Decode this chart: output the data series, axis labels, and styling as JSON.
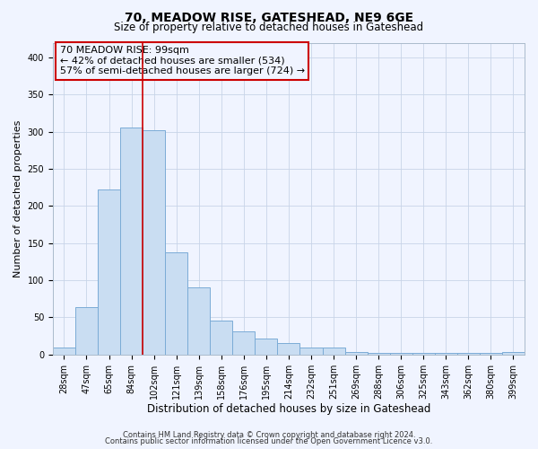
{
  "title": "70, MEADOW RISE, GATESHEAD, NE9 6GE",
  "subtitle": "Size of property relative to detached houses in Gateshead",
  "xlabel": "Distribution of detached houses by size in Gateshead",
  "ylabel": "Number of detached properties",
  "bar_labels": [
    "28sqm",
    "47sqm",
    "65sqm",
    "84sqm",
    "102sqm",
    "121sqm",
    "139sqm",
    "158sqm",
    "176sqm",
    "195sqm",
    "214sqm",
    "232sqm",
    "251sqm",
    "269sqm",
    "288sqm",
    "306sqm",
    "325sqm",
    "343sqm",
    "362sqm",
    "380sqm",
    "399sqm"
  ],
  "bar_values": [
    9,
    64,
    222,
    306,
    302,
    138,
    90,
    46,
    31,
    21,
    15,
    10,
    9,
    3,
    2,
    2,
    2,
    2,
    2,
    2,
    3
  ],
  "bar_color": "#c9ddf2",
  "bar_edgecolor": "#7bacd6",
  "vline_index": 4,
  "vline_color": "#cc0000",
  "annotation_title": "70 MEADOW RISE: 99sqm",
  "annotation_line1": "← 42% of detached houses are smaller (534)",
  "annotation_line2": "57% of semi-detached houses are larger (724) →",
  "annotation_box_edgecolor": "#cc0000",
  "ylim": [
    0,
    420
  ],
  "yticks": [
    0,
    50,
    100,
    150,
    200,
    250,
    300,
    350,
    400
  ],
  "footer1": "Contains HM Land Registry data © Crown copyright and database right 2024.",
  "footer2": "Contains public sector information licensed under the Open Government Licence v3.0.",
  "bg_color": "#f0f4ff",
  "grid_color": "#c8d4e8",
  "title_fontsize": 10,
  "subtitle_fontsize": 8.5,
  "xlabel_fontsize": 8.5,
  "ylabel_fontsize": 8,
  "tick_fontsize": 7,
  "annot_fontsize": 8,
  "footer_fontsize": 6
}
